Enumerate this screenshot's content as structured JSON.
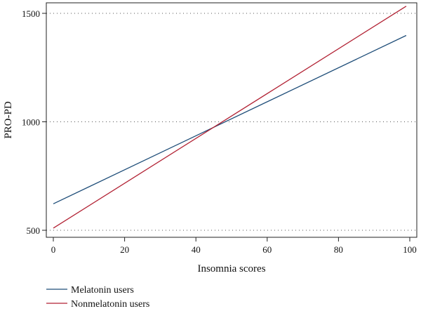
{
  "chart_data": {
    "type": "line",
    "xlabel": "Insomnia scores",
    "ylabel": "PRO-PD",
    "xlim": [
      0,
      100
    ],
    "ylim": [
      500,
      1500
    ],
    "xticks": [
      0,
      20,
      40,
      60,
      80,
      100
    ],
    "yticks": [
      500,
      1000,
      1500
    ],
    "grid": "horizontal dotted",
    "legend_position": "bottom-left",
    "series": [
      {
        "name": "Melatonin users",
        "color": "#1f4e79",
        "x": [
          0,
          99
        ],
        "y": [
          622,
          1398
        ]
      },
      {
        "name": "Nonmelatonin users",
        "color": "#b22234",
        "x": [
          0,
          99
        ],
        "y": [
          510,
          1533
        ]
      }
    ]
  }
}
